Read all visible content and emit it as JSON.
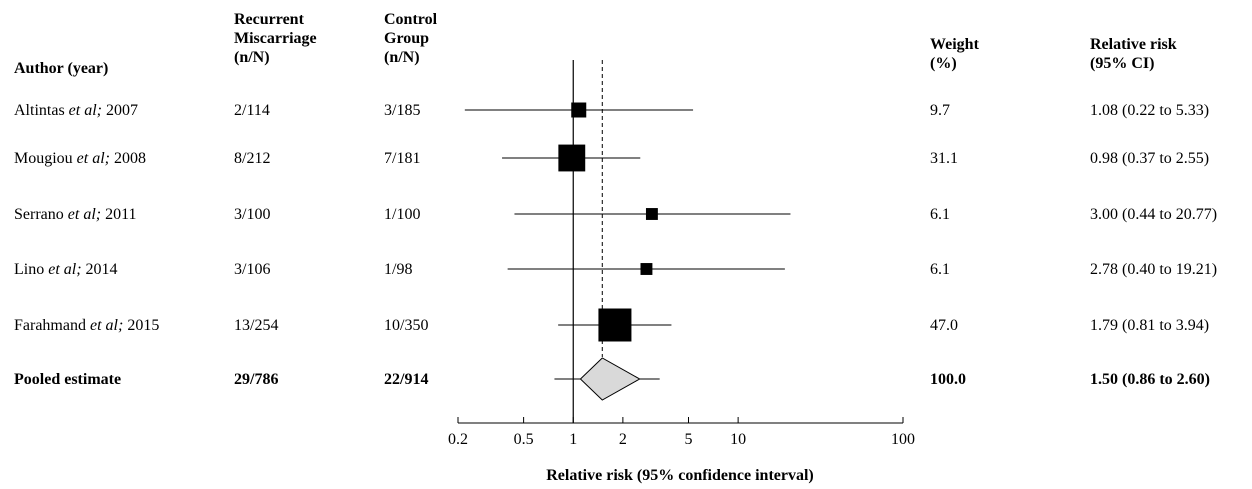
{
  "headers": {
    "author": "Author (year)",
    "recurrent": "Recurrent\nMiscarriage\n(n/N)",
    "control": "Control\nGroup\n(n/N)",
    "weight": "Weight\n(%)",
    "rr": "Relative risk\n(95% CI)"
  },
  "rows": [
    {
      "name": "Altintas",
      "etal": "et al;",
      "year": "2007",
      "rm": "2/114",
      "ctrl": "3/185",
      "weight": "9.7",
      "rr": "1.08 (0.22 to 5.33)"
    },
    {
      "name": "Mougiou",
      "etal": "et al;",
      "year": "2008",
      "rm": "8/212",
      "ctrl": "7/181",
      "weight": "31.1",
      "rr": "0.98 (0.37 to 2.55)"
    },
    {
      "name": "Serrano",
      "etal": "et al;",
      "year": "2011",
      "rm": "3/100",
      "ctrl": "1/100",
      "weight": "6.1",
      "rr": "3.00 (0.44 to 20.77)"
    },
    {
      "name": "Lino",
      "etal": "et al;",
      "year": "2014",
      "rm": "3/106",
      "ctrl": "1/98",
      "weight": "6.1",
      "rr": "2.78 (0.40 to 19.21)"
    },
    {
      "name": "Farahmand",
      "etal": "et al;",
      "year": "2015",
      "rm": "13/254",
      "ctrl": "10/350",
      "weight": "47.0",
      "rr": "1.79 (0.81 to 3.94)"
    }
  ],
  "pooled": {
    "label": "Pooled estimate",
    "rm": "29/786",
    "ctrl": "22/914",
    "weight": "100.0",
    "rr": "1.50 (0.86 to 2.60)"
  },
  "chart_data": {
    "type": "forest",
    "xscale": "log",
    "xlim": [
      0.2,
      100
    ],
    "xticks": [
      0.2,
      0.5,
      1,
      2,
      5,
      10,
      100
    ],
    "xtick_labels": [
      "0.2",
      "0.5",
      "1",
      "2",
      "5",
      "10",
      "100"
    ],
    "xlabel": "Relative risk (95% confidence interval)",
    "null_line": 1,
    "pooled_line": 1.5,
    "studies": [
      {
        "rr": 1.08,
        "lo": 0.22,
        "hi": 5.33,
        "weight": 9.7
      },
      {
        "rr": 0.98,
        "lo": 0.37,
        "hi": 2.55,
        "weight": 31.1
      },
      {
        "rr": 3.0,
        "lo": 0.44,
        "hi": 20.77,
        "weight": 6.1
      },
      {
        "rr": 2.78,
        "lo": 0.4,
        "hi": 19.21,
        "weight": 6.1
      },
      {
        "rr": 1.79,
        "lo": 0.81,
        "hi": 3.94,
        "weight": 47.0
      }
    ],
    "pooled": {
      "rr": 1.5,
      "lo": 0.86,
      "hi": 2.6
    },
    "colors": {
      "box": "#000000",
      "diamond_fill": "#d9d9d9",
      "line": "#000000"
    }
  }
}
